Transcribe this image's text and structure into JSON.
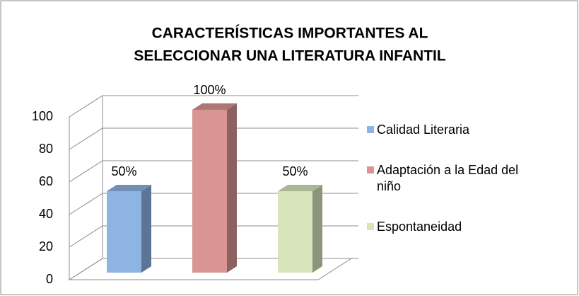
{
  "chart_data": {
    "type": "bar3d",
    "title": [
      "CARACTERÍSTICAS IMPORTANTES AL",
      "SELECCIONAR UNA LITERATURA INFANTIL"
    ],
    "categories": [
      null
    ],
    "series": [
      {
        "name": "Calidad Literaria",
        "color": "#8eb4e3",
        "values": [
          50
        ],
        "value_labels": [
          "50%"
        ]
      },
      {
        "name": "Adaptación a la Edad del niño",
        "color": "#d99594",
        "values": [
          100
        ],
        "value_labels": [
          "100%"
        ]
      },
      {
        "name": "Espontaneidad",
        "color": "#d7e4bc",
        "values": [
          50
        ],
        "value_labels": [
          "50%"
        ]
      }
    ],
    "ylim": [
      0,
      100
    ],
    "yticks": [
      0,
      20,
      40,
      60,
      80,
      100
    ],
    "grid": true,
    "legend": "right"
  }
}
